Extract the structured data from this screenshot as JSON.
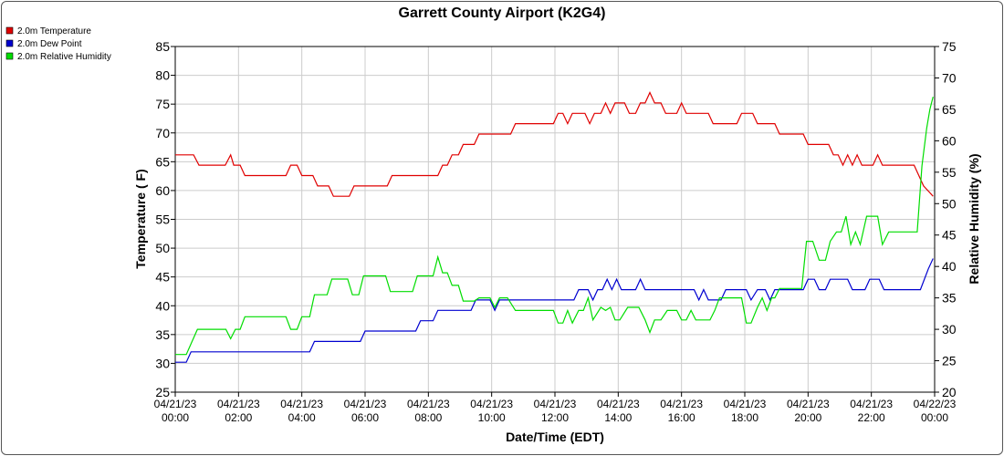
{
  "chart_data": {
    "type": "line",
    "title": "Garrett County Airport (K2G4)",
    "xlabel": "Date/Time (EDT)",
    "ylabel": "Temperature ( F)",
    "y2label": "Relative Humidity (%)",
    "ylim": [
      25,
      85
    ],
    "y2lim": [
      20,
      75
    ],
    "yticks": [
      25,
      30,
      35,
      40,
      45,
      50,
      55,
      60,
      65,
      70,
      75,
      80,
      85
    ],
    "y2ticks": [
      20,
      25,
      30,
      35,
      40,
      45,
      50,
      55,
      60,
      65,
      70,
      75
    ],
    "xlim": [
      0,
      24
    ],
    "xticks": [
      {
        "x": 0,
        "date": "04/21/23",
        "time": "00:00"
      },
      {
        "x": 2,
        "date": "04/21/23",
        "time": "02:00"
      },
      {
        "x": 4,
        "date": "04/21/23",
        "time": "04:00"
      },
      {
        "x": 6,
        "date": "04/21/23",
        "time": "06:00"
      },
      {
        "x": 8,
        "date": "04/21/23",
        "time": "08:00"
      },
      {
        "x": 10,
        "date": "04/21/23",
        "time": "10:00"
      },
      {
        "x": 12,
        "date": "04/21/23",
        "time": "12:00"
      },
      {
        "x": 14,
        "date": "04/21/23",
        "time": "14:00"
      },
      {
        "x": 16,
        "date": "04/21/23",
        "time": "16:00"
      },
      {
        "x": 18,
        "date": "04/21/23",
        "time": "18:00"
      },
      {
        "x": 20,
        "date": "04/21/23",
        "time": "20:00"
      },
      {
        "x": 22,
        "date": "04/21/23",
        "time": "22:00"
      },
      {
        "x": 24,
        "date": "04/22/23",
        "time": "00:00"
      }
    ],
    "grid": true,
    "legend_position": "top-left",
    "series": [
      {
        "name": "2.0m Temperature",
        "color": "#e00000",
        "axis": "left",
        "points": [
          [
            0,
            66.2
          ],
          [
            0.58,
            66.2
          ],
          [
            0.75,
            64.4
          ],
          [
            1.58,
            64.4
          ],
          [
            1.75,
            66.2
          ],
          [
            1.85,
            64.4
          ],
          [
            2.05,
            64.4
          ],
          [
            2.2,
            62.6
          ],
          [
            3.5,
            62.6
          ],
          [
            3.65,
            64.4
          ],
          [
            3.85,
            64.4
          ],
          [
            4.0,
            62.6
          ],
          [
            4.35,
            62.6
          ],
          [
            4.5,
            60.8
          ],
          [
            4.85,
            60.8
          ],
          [
            5.0,
            59.0
          ],
          [
            5.5,
            59.0
          ],
          [
            5.65,
            60.8
          ],
          [
            6.7,
            60.8
          ],
          [
            6.85,
            62.6
          ],
          [
            8.3,
            62.6
          ],
          [
            8.45,
            64.4
          ],
          [
            8.6,
            64.4
          ],
          [
            8.75,
            66.2
          ],
          [
            8.95,
            66.2
          ],
          [
            9.1,
            68.0
          ],
          [
            9.45,
            68.0
          ],
          [
            9.6,
            69.8
          ],
          [
            10.6,
            69.8
          ],
          [
            10.75,
            71.6
          ],
          [
            11.95,
            71.6
          ],
          [
            12.1,
            73.4
          ],
          [
            12.25,
            73.4
          ],
          [
            12.4,
            71.6
          ],
          [
            12.55,
            73.4
          ],
          [
            12.95,
            73.4
          ],
          [
            13.1,
            71.6
          ],
          [
            13.25,
            73.4
          ],
          [
            13.45,
            73.4
          ],
          [
            13.6,
            75.2
          ],
          [
            13.75,
            73.4
          ],
          [
            13.9,
            75.2
          ],
          [
            14.2,
            75.2
          ],
          [
            14.35,
            73.4
          ],
          [
            14.55,
            73.4
          ],
          [
            14.7,
            75.2
          ],
          [
            14.85,
            75.2
          ],
          [
            15.0,
            77.0
          ],
          [
            15.15,
            75.2
          ],
          [
            15.35,
            75.2
          ],
          [
            15.5,
            73.4
          ],
          [
            15.85,
            73.4
          ],
          [
            16.0,
            75.2
          ],
          [
            16.15,
            73.4
          ],
          [
            16.85,
            73.4
          ],
          [
            17.0,
            71.6
          ],
          [
            17.75,
            71.6
          ],
          [
            17.9,
            73.4
          ],
          [
            18.25,
            73.4
          ],
          [
            18.4,
            71.6
          ],
          [
            18.95,
            71.6
          ],
          [
            19.1,
            69.8
          ],
          [
            19.85,
            69.8
          ],
          [
            20.0,
            68.0
          ],
          [
            20.65,
            68.0
          ],
          [
            20.8,
            66.2
          ],
          [
            20.95,
            66.2
          ],
          [
            21.1,
            64.4
          ],
          [
            21.25,
            66.2
          ],
          [
            21.4,
            64.4
          ],
          [
            21.55,
            66.2
          ],
          [
            21.7,
            64.4
          ],
          [
            22.05,
            64.4
          ],
          [
            22.2,
            66.2
          ],
          [
            22.35,
            64.4
          ],
          [
            23.35,
            64.4
          ],
          [
            23.5,
            62.6
          ],
          [
            23.65,
            60.8
          ],
          [
            23.8,
            59.9
          ],
          [
            23.95,
            59.0
          ]
        ]
      },
      {
        "name": "2.0m Dew Point",
        "color": "#0000d0",
        "axis": "left",
        "points": [
          [
            0,
            30.2
          ],
          [
            0.35,
            30.2
          ],
          [
            0.5,
            32.0
          ],
          [
            4.25,
            32.0
          ],
          [
            4.4,
            33.8
          ],
          [
            5.85,
            33.8
          ],
          [
            6.0,
            35.6
          ],
          [
            7.6,
            35.6
          ],
          [
            7.75,
            37.4
          ],
          [
            8.15,
            37.4
          ],
          [
            8.3,
            39.2
          ],
          [
            9.35,
            39.2
          ],
          [
            9.5,
            41.0
          ],
          [
            9.95,
            41.0
          ],
          [
            10.1,
            39.2
          ],
          [
            10.25,
            41.0
          ],
          [
            12.6,
            41.0
          ],
          [
            12.75,
            42.8
          ],
          [
            13.05,
            42.8
          ],
          [
            13.2,
            41.0
          ],
          [
            13.35,
            42.8
          ],
          [
            13.5,
            42.8
          ],
          [
            13.65,
            44.6
          ],
          [
            13.8,
            42.8
          ],
          [
            13.95,
            44.6
          ],
          [
            14.1,
            42.8
          ],
          [
            14.55,
            42.8
          ],
          [
            14.7,
            44.6
          ],
          [
            14.85,
            42.8
          ],
          [
            16.4,
            42.8
          ],
          [
            16.55,
            41.0
          ],
          [
            16.7,
            42.8
          ],
          [
            16.85,
            41.0
          ],
          [
            17.25,
            41.0
          ],
          [
            17.4,
            42.8
          ],
          [
            18.05,
            42.8
          ],
          [
            18.2,
            41.0
          ],
          [
            18.4,
            42.8
          ],
          [
            18.65,
            42.8
          ],
          [
            18.8,
            41.0
          ],
          [
            18.95,
            42.8
          ],
          [
            19.85,
            42.8
          ],
          [
            20.0,
            44.6
          ],
          [
            20.2,
            44.6
          ],
          [
            20.35,
            42.8
          ],
          [
            20.55,
            42.8
          ],
          [
            20.7,
            44.6
          ],
          [
            21.25,
            44.6
          ],
          [
            21.4,
            42.8
          ],
          [
            21.8,
            42.8
          ],
          [
            21.95,
            44.6
          ],
          [
            22.25,
            44.6
          ],
          [
            22.4,
            42.8
          ],
          [
            23.55,
            42.8
          ],
          [
            23.8,
            46.4
          ],
          [
            23.95,
            48.2
          ]
        ]
      },
      {
        "name": "2.0m Relative Humidity",
        "color": "#00dd00",
        "axis": "right",
        "points": [
          [
            0,
            26
          ],
          [
            0.35,
            26
          ],
          [
            0.7,
            30
          ],
          [
            1.6,
            30
          ],
          [
            1.75,
            28.5
          ],
          [
            1.9,
            30
          ],
          [
            2.05,
            30
          ],
          [
            2.2,
            32
          ],
          [
            3.5,
            32
          ],
          [
            3.65,
            30
          ],
          [
            3.85,
            30
          ],
          [
            4.0,
            32
          ],
          [
            4.25,
            32
          ],
          [
            4.4,
            35.5
          ],
          [
            4.8,
            35.5
          ],
          [
            4.95,
            38
          ],
          [
            5.45,
            38
          ],
          [
            5.6,
            35.5
          ],
          [
            5.8,
            35.5
          ],
          [
            5.95,
            38.5
          ],
          [
            6.65,
            38.5
          ],
          [
            6.8,
            36
          ],
          [
            7.5,
            36
          ],
          [
            7.65,
            38.5
          ],
          [
            8.15,
            38.5
          ],
          [
            8.3,
            41.5
          ],
          [
            8.45,
            39
          ],
          [
            8.6,
            39
          ],
          [
            8.75,
            37
          ],
          [
            8.95,
            37
          ],
          [
            9.1,
            34.5
          ],
          [
            9.45,
            34.5
          ],
          [
            9.6,
            35
          ],
          [
            9.95,
            35
          ],
          [
            10.1,
            33.5
          ],
          [
            10.25,
            35
          ],
          [
            10.5,
            35
          ],
          [
            10.75,
            33
          ],
          [
            11.95,
            33
          ],
          [
            12.1,
            31
          ],
          [
            12.25,
            31
          ],
          [
            12.4,
            33
          ],
          [
            12.55,
            31
          ],
          [
            12.75,
            33
          ],
          [
            12.9,
            33
          ],
          [
            13.05,
            35
          ],
          [
            13.2,
            31.5
          ],
          [
            13.45,
            33.5
          ],
          [
            13.6,
            33
          ],
          [
            13.75,
            33.5
          ],
          [
            13.9,
            31.5
          ],
          [
            14.05,
            31.5
          ],
          [
            14.3,
            33.5
          ],
          [
            14.65,
            33.5
          ],
          [
            14.85,
            31.5
          ],
          [
            15.0,
            29.5
          ],
          [
            15.15,
            31.5
          ],
          [
            15.35,
            31.5
          ],
          [
            15.55,
            33
          ],
          [
            15.85,
            33
          ],
          [
            16.0,
            31.5
          ],
          [
            16.15,
            31.5
          ],
          [
            16.3,
            33
          ],
          [
            16.45,
            31.5
          ],
          [
            16.9,
            31.5
          ],
          [
            17.05,
            33
          ],
          [
            17.2,
            35
          ],
          [
            17.9,
            35
          ],
          [
            18.05,
            31
          ],
          [
            18.2,
            31
          ],
          [
            18.4,
            33.5
          ],
          [
            18.55,
            35
          ],
          [
            18.7,
            33
          ],
          [
            18.85,
            35
          ],
          [
            18.95,
            35
          ],
          [
            19.1,
            36.5
          ],
          [
            19.8,
            36.5
          ],
          [
            19.95,
            44
          ],
          [
            20.15,
            44
          ],
          [
            20.35,
            41
          ],
          [
            20.55,
            41
          ],
          [
            20.7,
            44
          ],
          [
            20.9,
            45.5
          ],
          [
            21.05,
            45.5
          ],
          [
            21.2,
            48
          ],
          [
            21.35,
            43.5
          ],
          [
            21.5,
            45.5
          ],
          [
            21.65,
            43.5
          ],
          [
            21.85,
            48
          ],
          [
            22.2,
            48
          ],
          [
            22.35,
            43.5
          ],
          [
            22.55,
            45.5
          ],
          [
            23.45,
            45.5
          ],
          [
            23.6,
            56
          ],
          [
            23.75,
            62
          ],
          [
            23.85,
            65
          ],
          [
            23.95,
            67
          ]
        ]
      }
    ]
  }
}
